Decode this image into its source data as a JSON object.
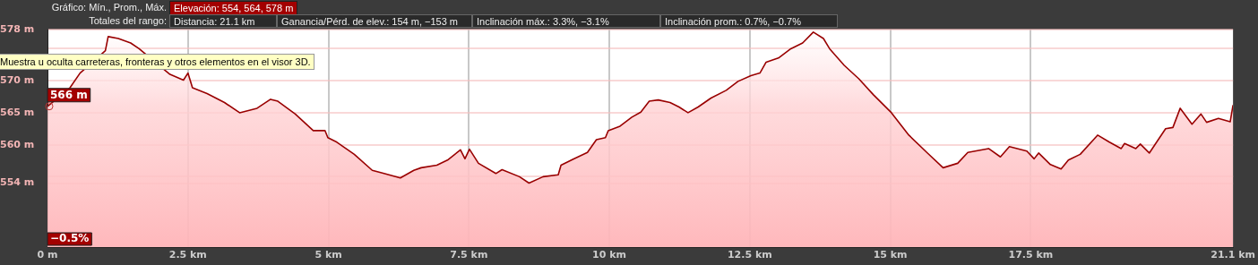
{
  "chart_data": {
    "type": "area",
    "marker": "none",
    "line_style": "solid",
    "legend": false,
    "grid": true,
    "x": [
      0,
      0.4,
      0.58,
      0.73,
      1.03,
      1.08,
      1.26,
      1.48,
      1.63,
      1.74,
      2.18,
      2.42,
      2.5,
      2.58,
      2.84,
      3.15,
      3.42,
      3.73,
      3.97,
      4.1,
      4.41,
      4.73,
      4.94,
      4.99,
      5.15,
      5.46,
      5.78,
      5.99,
      6.28,
      6.52,
      6.65,
      6.93,
      7.12,
      7.35,
      7.43,
      7.51,
      7.67,
      7.98,
      8.09,
      8.4,
      8.57,
      8.82,
      9.09,
      9.14,
      9.35,
      9.61,
      9.77,
      9.93,
      9.98,
      10.19,
      10.4,
      10.56,
      10.71,
      10.87,
      11.08,
      11.24,
      11.4,
      11.58,
      11.81,
      12.08,
      12.29,
      12.52,
      12.68,
      12.79,
      13.02,
      13.23,
      13.44,
      13.63,
      13.81,
      13.92,
      14.18,
      14.44,
      14.7,
      15.02,
      15.33,
      15.65,
      15.94,
      16.2,
      16.38,
      16.75,
      16.96,
      17.12,
      17.43,
      17.56,
      17.64,
      17.85,
      18.04,
      18.17,
      18.38,
      18.69,
      18.9,
      19.11,
      19.17,
      19.37,
      19.45,
      19.61,
      19.74,
      19.9,
      20.03,
      20.16,
      20.37,
      20.53,
      20.63,
      20.84,
      21.05,
      21.1
    ],
    "series": [
      {
        "color": "#990000",
        "values": [
          566,
          568.9,
          571.2,
          null,
          574.7,
          576.9,
          576.6,
          575.9,
          575,
          null,
          571,
          570.1,
          571.2,
          568.9,
          568,
          566.6,
          565,
          565.7,
          567.1,
          566.8,
          564.8,
          562.2,
          562.2,
          561.1,
          560.4,
          558.5,
          556,
          555.5,
          554.8,
          556,
          556.4,
          556.8,
          557.6,
          559.2,
          557.8,
          559.3,
          557.1,
          555.5,
          556.1,
          555,
          554,
          555,
          555.3,
          556.8,
          557.7,
          558.8,
          560.8,
          561.1,
          562.2,
          562.9,
          564.3,
          565.1,
          566.8,
          567,
          566.6,
          565.9,
          565,
          565.9,
          567.3,
          568.5,
          569.9,
          570.8,
          571.2,
          572.9,
          573.6,
          575,
          575.9,
          577.6,
          576.6,
          575,
          572.4,
          570.3,
          567.8,
          565,
          561.5,
          558.8,
          556.4,
          557.1,
          558.8,
          559.4,
          558.1,
          559.7,
          559,
          557.8,
          558.7,
          556.9,
          556.2,
          557.6,
          558.5,
          561.5,
          560.4,
          559.4,
          560.2,
          559.4,
          560.1,
          558.7,
          560.4,
          562.5,
          562.7,
          565.7,
          563.2,
          564.8,
          563.5,
          564.1,
          563.6,
          566.2
        ]
      }
    ],
    "xlim": [
      0,
      21.1
    ],
    "xticks": [
      {
        "value": 0,
        "label": "0 m"
      },
      {
        "value": 2.5,
        "label": "2.5 km"
      },
      {
        "value": 5,
        "label": "5 km"
      },
      {
        "value": 7.5,
        "label": "7.5 km"
      },
      {
        "value": 10,
        "label": "10 km"
      },
      {
        "value": 12.5,
        "label": "12.5 km"
      },
      {
        "value": 15,
        "label": "15 km"
      },
      {
        "value": 17.5,
        "label": "17.5 km"
      },
      {
        "value": 21.1,
        "label": "21.1 km"
      }
    ],
    "ylim": [
      544,
      578
    ],
    "yticks": [
      {
        "value": 554,
        "label": "554 m"
      },
      {
        "value": 555,
        "label": null
      },
      {
        "value": 560,
        "label": "560 m"
      },
      {
        "value": 565,
        "label": "565 m"
      },
      {
        "value": 570,
        "label": "570 m"
      },
      {
        "value": 575,
        "label": null
      },
      {
        "value": 578,
        "label": "578 m"
      }
    ],
    "annotations": [
      "Gráfico: Mín., Prom., Máx.",
      "Elevación: 554, 564, 578 m",
      "Totales del rango:",
      "Distancia: 21.1 km",
      "Ganancia/Pérd. de elev.: 154 m, −153 m",
      "Inclinación máx.: 3.3%, −3.1%",
      "Inclinación prom.: 0.7%, −0.7%",
      "Muestra u oculta carreteras, fronteras y otros elementos en el visor 3D.",
      {
        "text": "566 m",
        "x": 0,
        "y": 566
      },
      "−0.5%"
    ]
  }
}
